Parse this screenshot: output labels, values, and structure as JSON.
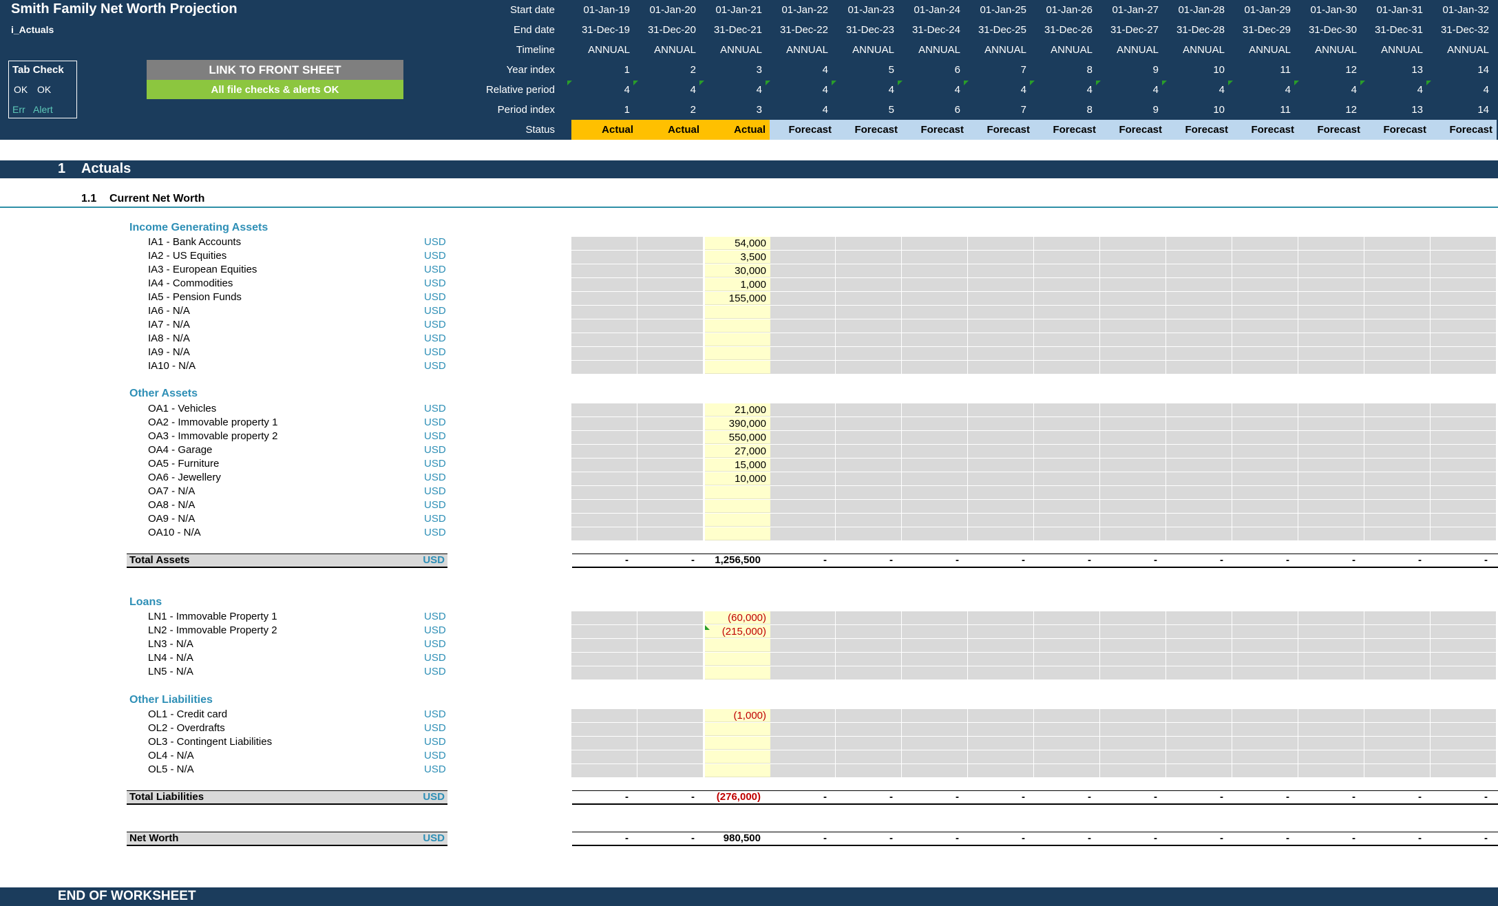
{
  "header": {
    "title": "Smith Family Net Worth Projection",
    "sheet_name": "i_Actuals",
    "tab_check": {
      "title": "Tab Check",
      "ok1": "OK",
      "ok2": "OK",
      "err": "Err",
      "alert": "Alert"
    },
    "link_button": "LINK TO FRONT SHEET",
    "checks_status": "All file checks & alerts OK",
    "row_labels": {
      "start": "Start date",
      "end": "End date",
      "timeline": "Timeline",
      "year_index": "Year index",
      "relative_period": "Relative period",
      "period_index": "Period index",
      "status": "Status"
    },
    "columns": [
      {
        "start": "01-Jan-19",
        "end": "31-Dec-19",
        "timeline": "ANNUAL",
        "year_index": "1",
        "relative_period": "4",
        "period_index": "1",
        "status": "Actual"
      },
      {
        "start": "01-Jan-20",
        "end": "31-Dec-20",
        "timeline": "ANNUAL",
        "year_index": "2",
        "relative_period": "4",
        "period_index": "2",
        "status": "Actual"
      },
      {
        "start": "01-Jan-21",
        "end": "31-Dec-21",
        "timeline": "ANNUAL",
        "year_index": "3",
        "relative_period": "4",
        "period_index": "3",
        "status": "Actual"
      },
      {
        "start": "01-Jan-22",
        "end": "31-Dec-22",
        "timeline": "ANNUAL",
        "year_index": "4",
        "relative_period": "4",
        "period_index": "4",
        "status": "Forecast"
      },
      {
        "start": "01-Jan-23",
        "end": "31-Dec-23",
        "timeline": "ANNUAL",
        "year_index": "5",
        "relative_period": "4",
        "period_index": "5",
        "status": "Forecast"
      },
      {
        "start": "01-Jan-24",
        "end": "31-Dec-24",
        "timeline": "ANNUAL",
        "year_index": "6",
        "relative_period": "4",
        "period_index": "6",
        "status": "Forecast"
      },
      {
        "start": "01-Jan-25",
        "end": "31-Dec-25",
        "timeline": "ANNUAL",
        "year_index": "7",
        "relative_period": "4",
        "period_index": "7",
        "status": "Forecast"
      },
      {
        "start": "01-Jan-26",
        "end": "31-Dec-26",
        "timeline": "ANNUAL",
        "year_index": "8",
        "relative_period": "4",
        "period_index": "8",
        "status": "Forecast"
      },
      {
        "start": "01-Jan-27",
        "end": "31-Dec-27",
        "timeline": "ANNUAL",
        "year_index": "9",
        "relative_period": "4",
        "period_index": "9",
        "status": "Forecast"
      },
      {
        "start": "01-Jan-28",
        "end": "31-Dec-28",
        "timeline": "ANNUAL",
        "year_index": "10",
        "relative_period": "4",
        "period_index": "10",
        "status": "Forecast"
      },
      {
        "start": "01-Jan-29",
        "end": "31-Dec-29",
        "timeline": "ANNUAL",
        "year_index": "11",
        "relative_period": "4",
        "period_index": "11",
        "status": "Forecast"
      },
      {
        "start": "01-Jan-30",
        "end": "31-Dec-30",
        "timeline": "ANNUAL",
        "year_index": "12",
        "relative_period": "4",
        "period_index": "12",
        "status": "Forecast"
      },
      {
        "start": "01-Jan-31",
        "end": "31-Dec-31",
        "timeline": "ANNUAL",
        "year_index": "13",
        "relative_period": "4",
        "period_index": "13",
        "status": "Forecast"
      },
      {
        "start": "01-Jan-32",
        "end": "31-Dec-32",
        "timeline": "ANNUAL",
        "year_index": "14",
        "relative_period": "4",
        "period_index": "14",
        "status": "Forecast"
      }
    ]
  },
  "section": {
    "number": "1",
    "title": "Actuals"
  },
  "subsection": {
    "number": "1.1",
    "title": "Current Net Worth"
  },
  "unit": "USD",
  "income_assets": {
    "title": "Income Generating Assets",
    "rows": [
      {
        "label": "IA1 - Bank Accounts",
        "value": "54,000"
      },
      {
        "label": "IA2 - US Equities",
        "value": "3,500"
      },
      {
        "label": "IA3 - European Equities",
        "value": "30,000"
      },
      {
        "label": "IA4 - Commodities",
        "value": "1,000"
      },
      {
        "label": "IA5 - Pension Funds",
        "value": "155,000"
      },
      {
        "label": "IA6 - N/A",
        "value": ""
      },
      {
        "label": "IA7 - N/A",
        "value": ""
      },
      {
        "label": "IA8 - N/A",
        "value": ""
      },
      {
        "label": "IA9 - N/A",
        "value": ""
      },
      {
        "label": "IA10 - N/A",
        "value": ""
      }
    ]
  },
  "other_assets": {
    "title": "Other Assets",
    "rows": [
      {
        "label": "OA1 - Vehicles",
        "value": "21,000"
      },
      {
        "label": "OA2 - Immovable property 1",
        "value": "390,000"
      },
      {
        "label": "OA3 - Immovable property 2",
        "value": "550,000"
      },
      {
        "label": "OA4 - Garage",
        "value": "27,000"
      },
      {
        "label": "OA5 - Furniture",
        "value": "15,000"
      },
      {
        "label": "OA6 - Jewellery",
        "value": "10,000"
      },
      {
        "label": "OA7 - N/A",
        "value": ""
      },
      {
        "label": "OA8 - N/A",
        "value": ""
      },
      {
        "label": "OA9 - N/A",
        "value": ""
      },
      {
        "label": "OA10 - N/A",
        "value": ""
      }
    ]
  },
  "total_assets": {
    "label": "Total Assets",
    "values": [
      "-",
      "-",
      "1,256,500",
      "-",
      "-",
      "-",
      "-",
      "-",
      "-",
      "-",
      "-",
      "-",
      "-",
      "-"
    ]
  },
  "loans": {
    "title": "Loans",
    "rows": [
      {
        "label": "LN1 - Immovable Property 1",
        "value": "(60,000)"
      },
      {
        "label": "LN2 - Immovable Property 2",
        "value": "(215,000)"
      },
      {
        "label": "LN3 - N/A",
        "value": ""
      },
      {
        "label": "LN4 - N/A",
        "value": ""
      },
      {
        "label": "LN5 - N/A",
        "value": ""
      }
    ]
  },
  "other_liabilities": {
    "title": "Other Liabilities",
    "rows": [
      {
        "label": "OL1 - Credit card",
        "value": "(1,000)"
      },
      {
        "label": "OL2 - Overdrafts",
        "value": ""
      },
      {
        "label": "OL3 - Contingent Liabilities",
        "value": ""
      },
      {
        "label": "OL4 - N/A",
        "value": ""
      },
      {
        "label": "OL5 - N/A",
        "value": ""
      }
    ]
  },
  "total_liabilities": {
    "label": "Total Liabilities",
    "values": [
      "-",
      "-",
      "(276,000)",
      "-",
      "-",
      "-",
      "-",
      "-",
      "-",
      "-",
      "-",
      "-",
      "-",
      "-"
    ]
  },
  "net_worth": {
    "label": "Net Worth",
    "values": [
      "-",
      "-",
      "980,500",
      "-",
      "-",
      "-",
      "-",
      "-",
      "-",
      "-",
      "-",
      "-",
      "-",
      "-"
    ]
  },
  "end_label": "END OF WORKSHEET",
  "colors": {
    "navy": "#1b3c5c",
    "actual": "#ffc000",
    "forecast": "#bdd7ee",
    "input": "#ffffcc",
    "grid": "#d9d9d9",
    "accent": "#2e8fb6",
    "ok_green": "#8cc63f",
    "negative": "#c00000"
  }
}
